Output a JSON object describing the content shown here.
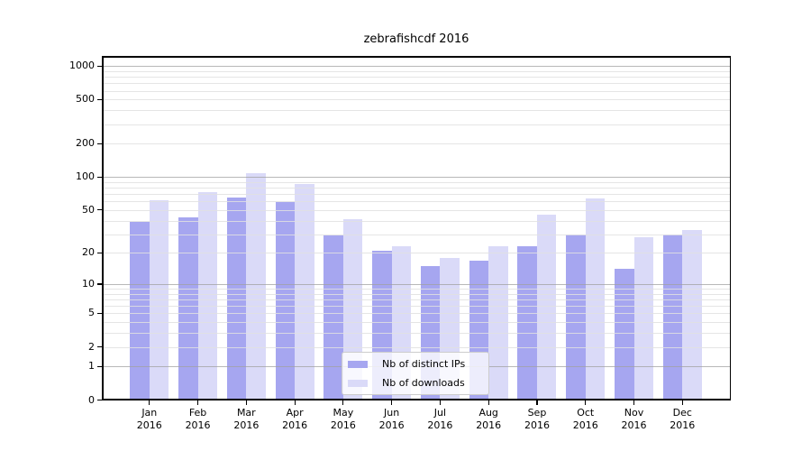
{
  "title": "zebrafishcdf 2016",
  "legend": {
    "items": [
      {
        "label": "Nb of distinct IPs",
        "color": "#a6a6f0"
      },
      {
        "label": "Nb of downloads",
        "color": "#dadaf8"
      }
    ]
  },
  "x_axis": {
    "months": [
      "Jan",
      "Feb",
      "Mar",
      "Apr",
      "May",
      "Jun",
      "Jul",
      "Aug",
      "Sep",
      "Oct",
      "Nov",
      "Dec"
    ],
    "year": "2016"
  },
  "y_axis": {
    "tick_labels": [
      "1000",
      "500",
      "200",
      "100",
      "50",
      "20",
      "10",
      "5",
      "2",
      "1",
      "0"
    ],
    "tick_values": [
      1000,
      500,
      200,
      100,
      50,
      20,
      10,
      5,
      2,
      1,
      0
    ]
  },
  "chart_data": {
    "type": "bar",
    "title": "zebrafishcdf 2016",
    "categories": [
      "Jan 2016",
      "Feb 2016",
      "Mar 2016",
      "Apr 2016",
      "May 2016",
      "Jun 2016",
      "Jul 2016",
      "Aug 2016",
      "Sep 2016",
      "Oct 2016",
      "Nov 2016",
      "Dec 2016"
    ],
    "series": [
      {
        "name": "Nb of distinct IPs",
        "values": [
          39,
          43,
          65,
          59,
          29,
          21,
          15,
          17,
          23,
          30,
          14,
          30
        ],
        "color": "#a6a6f0"
      },
      {
        "name": "Nb of downloads",
        "values": [
          61,
          73,
          108,
          86,
          41,
          23,
          18,
          23,
          45,
          64,
          28,
          33
        ],
        "color": "#dadaf8"
      }
    ],
    "yscale": "log1p",
    "yticks": [
      0,
      1,
      2,
      5,
      10,
      20,
      50,
      100,
      200,
      500,
      1000
    ],
    "ylim": [
      0,
      1200
    ],
    "grid": "horizontal, major and minor",
    "legend_position": "inside bottom-center"
  },
  "colors": {
    "bar_ips": "#a6a6f0",
    "bar_downloads": "#dadaf8",
    "grid_major": "rgba(160,160,160,0.75)",
    "grid_minor": "rgba(225,225,225,0.85)",
    "spine": "#000000",
    "background": "#ffffff"
  }
}
